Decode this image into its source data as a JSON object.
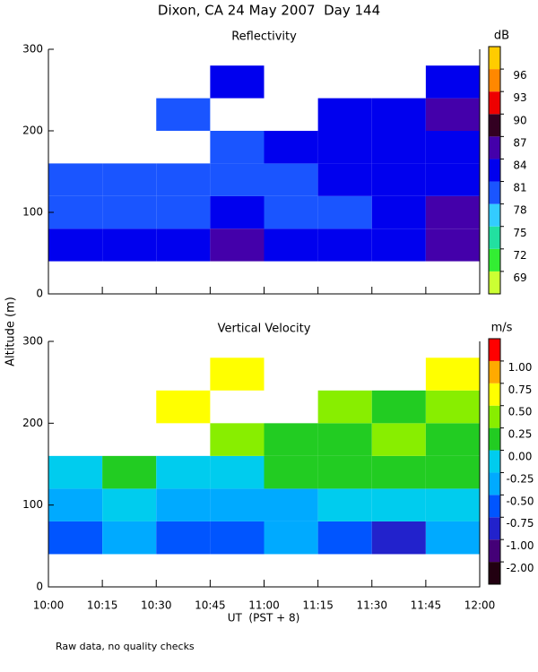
{
  "title": "Dixon, CA 24 May 2007  Day 144",
  "ylabel": "Altitude (m)",
  "xlabel": "UT  (PST + 8)",
  "footnote": "Raw data, no quality checks",
  "chart_data": [
    {
      "type": "heatmap",
      "title": "Reflectivity",
      "x": [
        10,
        10.25,
        10.5,
        10.75,
        11,
        11.25,
        11.5,
        11.75,
        12
      ],
      "y": [
        40,
        80,
        120,
        160,
        200,
        240,
        280
      ],
      "values": [
        [
          82,
          82,
          83,
          84,
          82,
          81,
          82,
          86
        ],
        [
          80,
          80,
          80,
          81,
          79,
          80,
          81,
          84
        ],
        [
          79,
          79,
          80,
          80,
          80,
          81,
          81,
          82
        ],
        [
          null,
          null,
          null,
          80,
          81,
          82,
          82,
          83
        ],
        [
          null,
          null,
          78,
          null,
          null,
          81,
          82,
          84
        ],
        [
          null,
          null,
          null,
          81,
          null,
          null,
          null,
          82
        ]
      ],
      "xlim": [
        10,
        12
      ],
      "ylim": [
        0,
        300
      ],
      "xticks": [
        10,
        10.25,
        10.5,
        10.75,
        11,
        11.25,
        11.5,
        11.75,
        12
      ],
      "yticks": [
        0,
        100,
        200,
        300
      ],
      "colorbar": {
        "label": "dB",
        "ticks": [
          69,
          72,
          75,
          78,
          81,
          84,
          87,
          90,
          93,
          96
        ],
        "colors": [
          "#ccff33",
          "#33ee33",
          "#22e0a0",
          "#33ccff",
          "#1a55ff",
          "#0000ee",
          "#4400aa",
          "#330022",
          "#ee0000",
          "#ff8800",
          "#ffcc00"
        ]
      }
    },
    {
      "type": "heatmap",
      "title": "Vertical Velocity",
      "x": [
        10,
        10.25,
        10.5,
        10.75,
        11,
        11.25,
        11.5,
        11.75,
        12
      ],
      "y": [
        40,
        80,
        120,
        160,
        200,
        240,
        280
      ],
      "values": [
        [
          -0.6,
          -0.5,
          -0.6,
          -0.7,
          -0.5,
          -0.6,
          -0.8,
          -0.5
        ],
        [
          -0.3,
          -0.2,
          -0.3,
          -0.4,
          -0.3,
          -0.2,
          -0.2,
          -0.1
        ],
        [
          -0.1,
          0,
          -0.1,
          -0.2,
          0.1,
          0.1,
          0.2,
          0.1
        ],
        [
          null,
          null,
          null,
          0.3,
          0.2,
          0.2,
          0.3,
          0.2
        ],
        [
          null,
          null,
          0.5,
          null,
          null,
          0.3,
          0.2,
          0.3
        ],
        [
          null,
          null,
          null,
          0.6,
          null,
          null,
          null,
          0.6
        ]
      ],
      "xlim": [
        10,
        12
      ],
      "ylim": [
        0,
        300
      ],
      "xticks": [
        {
          "value": 10,
          "label": "10:00"
        },
        {
          "value": 10.25,
          "label": "10:15"
        },
        {
          "value": 10.5,
          "label": "10:30"
        },
        {
          "value": 10.75,
          "label": "10:45"
        },
        {
          "value": 11,
          "label": "11:00"
        },
        {
          "value": 11.25,
          "label": "11:15"
        },
        {
          "value": 11.5,
          "label": "11:30"
        },
        {
          "value": 11.75,
          "label": "11:45"
        },
        {
          "value": 12,
          "label": "12:00"
        }
      ],
      "yticks": [
        0,
        100,
        200,
        300
      ],
      "colorbar": {
        "label": "m/s",
        "ticks": [
          {
            "value": -2,
            "label": "-2.00"
          },
          {
            "value": -1,
            "label": "-1.00"
          },
          {
            "value": -0.75,
            "label": "-0.75"
          },
          {
            "value": -0.5,
            "label": "-0.50"
          },
          {
            "value": -0.25,
            "label": "-0.25"
          },
          {
            "value": 0,
            "label": "0.00"
          },
          {
            "value": 0.25,
            "label": "0.25"
          },
          {
            "value": 0.5,
            "label": "0.50"
          },
          {
            "value": 0.75,
            "label": "0.75"
          },
          {
            "value": 1,
            "label": "1.00"
          }
        ],
        "colors": [
          "#220011",
          "#440077",
          "#2222cc",
          "#0055ff",
          "#00aaff",
          "#00ccee",
          "#22cc22",
          "#88ee00",
          "#ffff00",
          "#ffaa00",
          "#ff0000"
        ]
      }
    }
  ]
}
